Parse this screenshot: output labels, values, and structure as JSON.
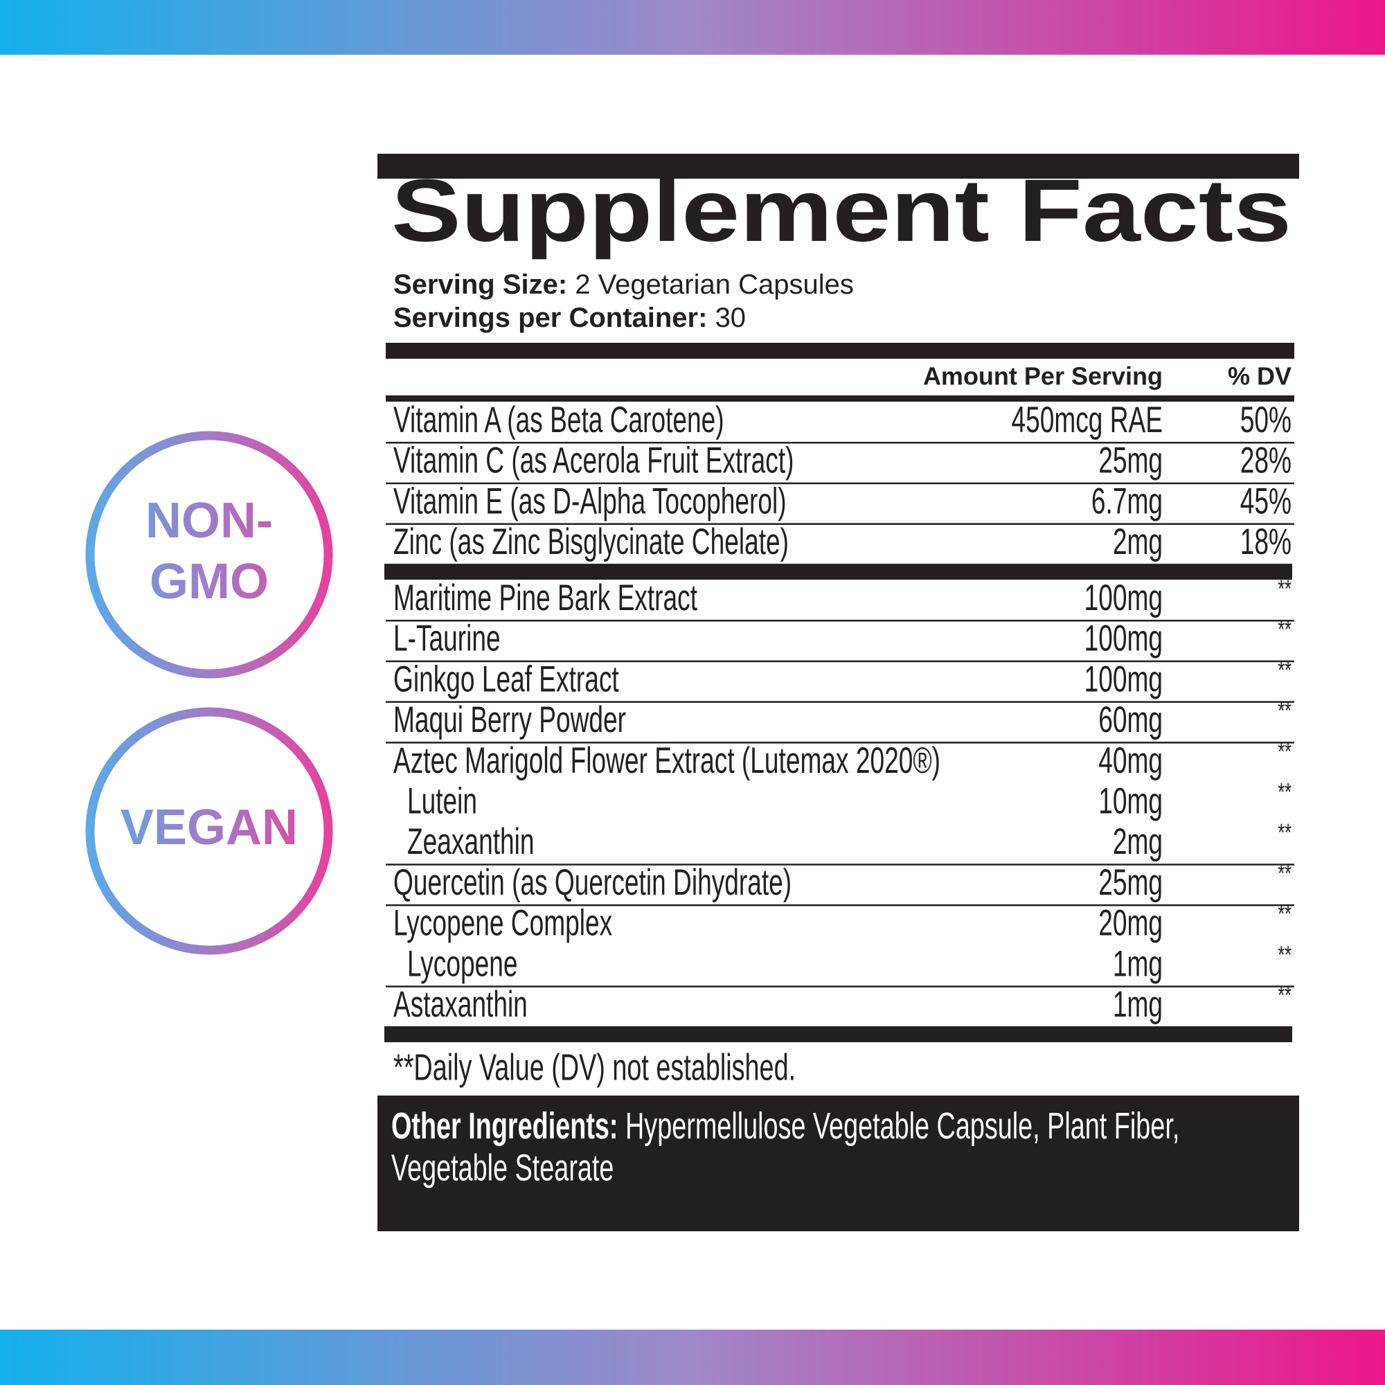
{
  "header": {
    "title": "Supplement Facts",
    "serving_size_label": "Serving Size:",
    "serving_size": "2 Vegetarian Capsules",
    "servings_label": "Servings per Container:",
    "servings": "30"
  },
  "table": {
    "columns": [
      "Amount Per Serving",
      "% DV"
    ],
    "groups": [
      [
        {
          "name": "Vitamin A (as Beta Carotene)",
          "amount": "450mcg RAE",
          "dv": "50%"
        },
        {
          "name": "Vitamin C (as Acerola Fruit Extract)",
          "amount": "25mg",
          "dv": "28%"
        },
        {
          "name": "Vitamin E (as D-Alpha Tocopherol)",
          "amount": "6.7mg",
          "dv": "45%"
        },
        {
          "name": "Zinc (as Zinc Bisglycinate Chelate)",
          "amount": "2mg",
          "dv": "18%"
        }
      ],
      [
        {
          "name": "Maritime Pine Bark Extract",
          "amount": "100mg",
          "dv": "**"
        },
        {
          "name": "L-Taurine",
          "amount": "100mg",
          "dv": "**"
        },
        {
          "name": "Ginkgo Leaf Extract",
          "amount": "100mg",
          "dv": "**"
        },
        {
          "name": "Maqui Berry Powder",
          "amount": "60mg",
          "dv": "**"
        },
        {
          "name": "Aztec Marigold Flower Extract (Lutemax 2020®)",
          "amount": "40mg",
          "dv": "**"
        },
        {
          "name": "Lutein",
          "amount": "10mg",
          "dv": "**",
          "sub": true
        },
        {
          "name": "Zeaxanthin",
          "amount": "2mg",
          "dv": "**",
          "sub": true
        },
        {
          "name": "Quercetin (as Quercetin Dihydrate)",
          "amount": "25mg",
          "dv": "**"
        },
        {
          "name": "Lycopene Complex",
          "amount": "20mg",
          "dv": "**"
        },
        {
          "name": "Lycopene",
          "amount": "1mg",
          "dv": "**",
          "sub": true
        },
        {
          "name": "Astaxanthin",
          "amount": "1mg",
          "dv": "**"
        }
      ]
    ]
  },
  "footnote": "**Daily Value (DV) not established.",
  "other_ingredients": {
    "label": "Other Ingredients:",
    "lines": [
      "Hypermellulose Vegetable Capsule, Plant Fiber,",
      "Vegetable Stearate"
    ]
  },
  "badges": [
    [
      "NON-",
      "GMO"
    ],
    [
      "VEGAN"
    ]
  ]
}
